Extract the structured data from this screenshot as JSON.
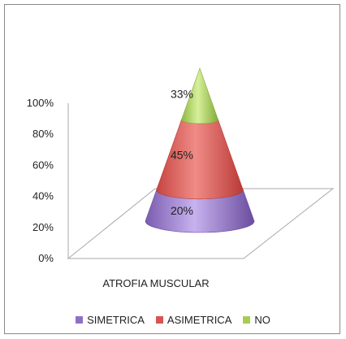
{
  "chart_data": {
    "type": "bar",
    "subtype": "3d-cone-stacked-100",
    "categories": [
      "ATROFIA MUSCULAR"
    ],
    "series": [
      {
        "name": "SIMETRICA",
        "values": [
          20
        ],
        "color": "#8e6fc7"
      },
      {
        "name": "ASIMETRICA",
        "values": [
          45
        ],
        "color": "#d9534f"
      },
      {
        "name": "NO",
        "values": [
          33
        ],
        "color": "#a6cd52"
      }
    ],
    "data_labels": [
      "20%",
      "45%",
      "33%"
    ],
    "yticks": [
      "0%",
      "20%",
      "40%",
      "60%",
      "80%",
      "100%"
    ],
    "ylim": [
      0,
      100
    ],
    "legend_position": "bottom",
    "grid": false
  }
}
